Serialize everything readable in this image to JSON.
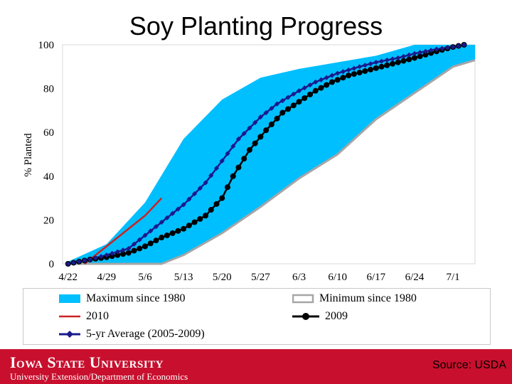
{
  "slide": {
    "title": "Soy Planting Progress",
    "footer_name": "Iowa State University",
    "footer_dept": "University Extension/Department of Economics",
    "source": "Source: USDA"
  },
  "colors": {
    "band": "#00bfff",
    "minimum": "#a6a6a6",
    "y2010": "#cc2222",
    "y2009": "#000000",
    "avg": "#1a1a8c",
    "footer": "#c8102e"
  },
  "chart_data": {
    "type": "line",
    "title": "Soy Planting Progress",
    "xlabel": "",
    "ylabel": "% Planted",
    "x_unit": "days",
    "xlim": [
      -1,
      74
    ],
    "ylim": [
      0,
      100
    ],
    "yticks": [
      0,
      20,
      40,
      60,
      80,
      100
    ],
    "xtick_labels": [
      "4/22",
      "4/29",
      "5/6",
      "5/13",
      "5/20",
      "5/27",
      "6/3",
      "6/10",
      "6/17",
      "6/24",
      "7/1"
    ],
    "xtick_positions": [
      0,
      7,
      14,
      21,
      28,
      35,
      42,
      49,
      56,
      63,
      70
    ],
    "legend_position": "bottom",
    "grid": false,
    "series": [
      {
        "name": "Maximum since 1980",
        "kind": "band-upper",
        "points": [
          [
            0,
            1
          ],
          [
            7,
            9
          ],
          [
            14,
            28
          ],
          [
            21,
            57
          ],
          [
            28,
            75
          ],
          [
            35,
            85
          ],
          [
            42,
            89
          ],
          [
            49,
            92
          ],
          [
            56,
            95
          ],
          [
            63,
            100
          ],
          [
            70,
            100
          ],
          [
            74,
            100
          ]
        ]
      },
      {
        "name": "Minimum since 1980",
        "kind": "band-lower",
        "points": [
          [
            0,
            0
          ],
          [
            7,
            0
          ],
          [
            14,
            0
          ],
          [
            17,
            0
          ],
          [
            21,
            4
          ],
          [
            28,
            14
          ],
          [
            35,
            26
          ],
          [
            42,
            39
          ],
          [
            49,
            50
          ],
          [
            56,
            66
          ],
          [
            63,
            78
          ],
          [
            70,
            90
          ],
          [
            74,
            93
          ]
        ]
      },
      {
        "name": "2010",
        "kind": "line",
        "points": [
          [
            3,
            0
          ],
          [
            7,
            8
          ],
          [
            14,
            22
          ],
          [
            17,
            30
          ]
        ]
      },
      {
        "name": "2009",
        "kind": "line-markers",
        "marker": "circle",
        "points": [
          [
            0,
            0
          ],
          [
            4,
            2
          ],
          [
            7,
            3
          ],
          [
            11,
            5
          ],
          [
            14,
            8
          ],
          [
            17,
            12
          ],
          [
            21,
            16
          ],
          [
            25,
            22
          ],
          [
            28,
            30
          ],
          [
            30,
            40
          ],
          [
            33,
            52
          ],
          [
            36,
            61
          ],
          [
            39,
            69
          ],
          [
            42,
            74
          ],
          [
            45,
            79
          ],
          [
            48,
            83
          ],
          [
            51,
            86
          ],
          [
            54,
            88
          ],
          [
            57,
            90
          ],
          [
            60,
            92
          ],
          [
            63,
            94
          ],
          [
            67,
            97
          ],
          [
            70,
            99
          ],
          [
            72,
            100
          ]
        ]
      },
      {
        "name": "5-yr Average (2005-2009)",
        "kind": "line-markers",
        "marker": "diamond",
        "points": [
          [
            0,
            0
          ],
          [
            4,
            2
          ],
          [
            7,
            4
          ],
          [
            11,
            7
          ],
          [
            14,
            13
          ],
          [
            17,
            19
          ],
          [
            21,
            27
          ],
          [
            25,
            37
          ],
          [
            28,
            47
          ],
          [
            31,
            57
          ],
          [
            35,
            67
          ],
          [
            38,
            73
          ],
          [
            42,
            79
          ],
          [
            45,
            83
          ],
          [
            49,
            87
          ],
          [
            53,
            90
          ],
          [
            56,
            92
          ],
          [
            60,
            94
          ],
          [
            63,
            96
          ],
          [
            67,
            98
          ],
          [
            70,
            99
          ],
          [
            72,
            100
          ]
        ]
      }
    ]
  }
}
